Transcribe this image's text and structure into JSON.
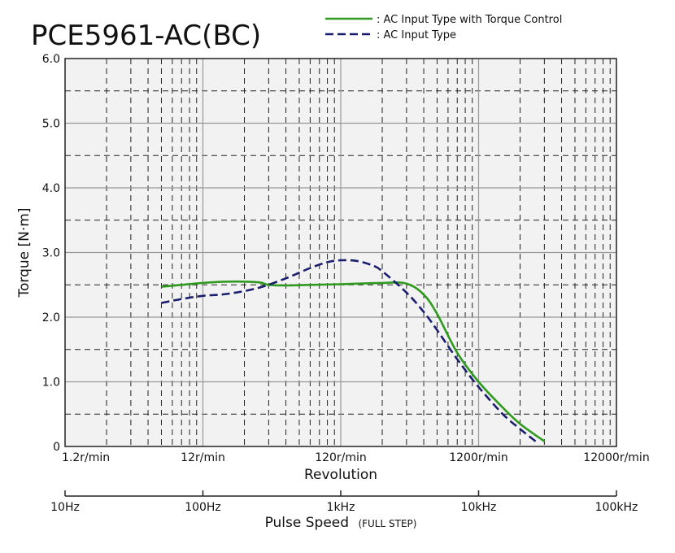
{
  "chart_data": {
    "type": "line",
    "title": "PCE5961-AC(BC)",
    "ylabel": "Torque [N·m]",
    "ylim": [
      0,
      6
    ],
    "yticks": [
      "0",
      "1.0",
      "2.0",
      "3.0",
      "4.0",
      "5.0",
      "6.0"
    ],
    "y_grid_values": [
      0.5,
      1.5,
      2.5,
      3.5,
      4.5,
      5.5,
      1,
      2,
      3,
      4,
      5
    ],
    "x_scale": "log",
    "xlim_hz": [
      10,
      100000
    ],
    "xlabel_revolution": "Revolution",
    "revolution_ticks": [
      {
        "hz": 10,
        "label": "1.2r/min"
      },
      {
        "hz": 100,
        "label": "12r/min"
      },
      {
        "hz": 1000,
        "label": "120r/min"
      },
      {
        "hz": 10000,
        "label": "1200r/min"
      },
      {
        "hz": 100000,
        "label": "12000r/min"
      }
    ],
    "xlabel_pulse": "Pulse Speed",
    "xlabel_pulse_note": "(FULL STEP)",
    "pulse_ticks": [
      {
        "hz": 10,
        "label": "10Hz"
      },
      {
        "hz": 100,
        "label": "100Hz"
      },
      {
        "hz": 1000,
        "label": "1kHz"
      },
      {
        "hz": 10000,
        "label": "10kHz"
      },
      {
        "hz": 100000,
        "label": "100kHz"
      }
    ],
    "legend_position": "top-right",
    "grid": true,
    "series": [
      {
        "name": ": AC Input Type with Torque Control",
        "color": "#2e9a1e",
        "style": "solid",
        "x": [
          50,
          70,
          100,
          150,
          250,
          300,
          400,
          600,
          1000,
          2000,
          3000,
          4000,
          5000,
          7000,
          10000,
          15000,
          20000,
          30000
        ],
        "y": [
          2.47,
          2.5,
          2.53,
          2.55,
          2.54,
          2.5,
          2.49,
          2.5,
          2.51,
          2.53,
          2.52,
          2.35,
          2.05,
          1.45,
          1.0,
          0.6,
          0.35,
          0.08
        ]
      },
      {
        "name": ": AC Input Type",
        "color": "#1b1e6e",
        "style": "dashed",
        "x": [
          50,
          70,
          100,
          150,
          250,
          400,
          600,
          800,
          1000,
          1300,
          1700,
          2000,
          3000,
          4000,
          5000,
          7000,
          10000,
          15000,
          20000,
          27000
        ],
        "y": [
          2.22,
          2.28,
          2.33,
          2.36,
          2.45,
          2.6,
          2.76,
          2.85,
          2.88,
          2.87,
          2.8,
          2.71,
          2.38,
          2.08,
          1.8,
          1.35,
          0.92,
          0.5,
          0.27,
          0.05
        ]
      }
    ]
  },
  "colors": {
    "plot_background": "#f2f2f2",
    "grid_major": "#999999",
    "grid_minor": "#222222",
    "axis": "#222222"
  }
}
